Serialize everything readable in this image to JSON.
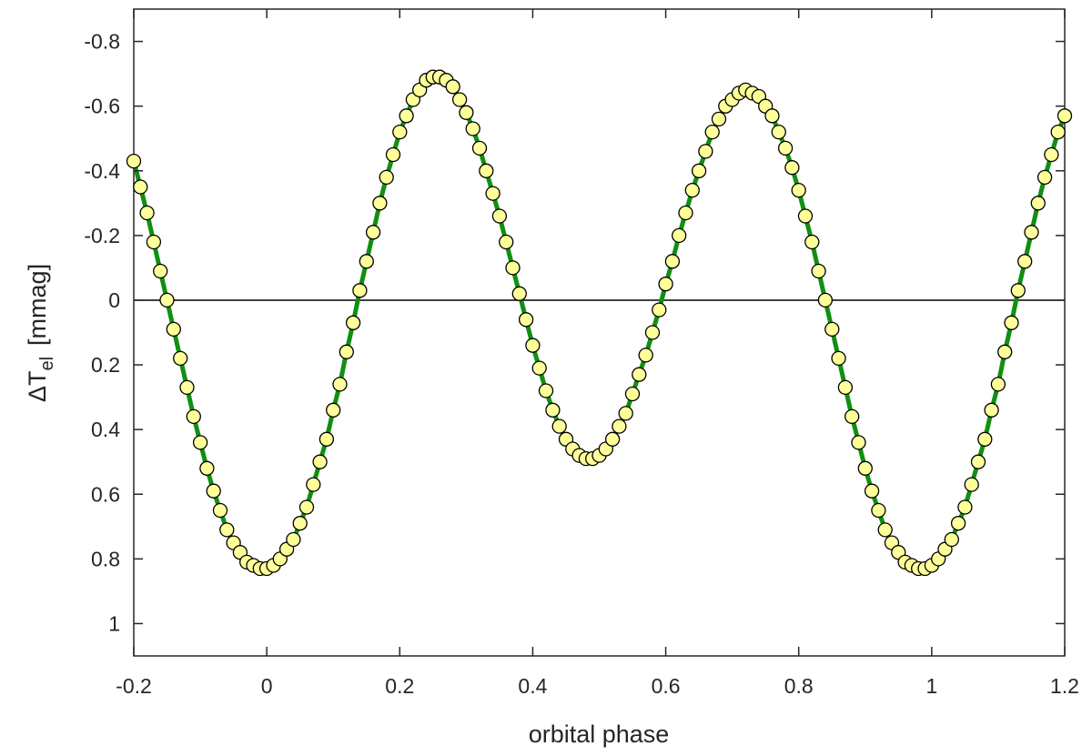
{
  "chart_data": {
    "type": "line",
    "xlabel": "orbital phase",
    "ylabel": {
      "prefix": "ΔT",
      "sub": "el",
      "unit": "[mmag]"
    },
    "xlim": [
      -0.2,
      1.2
    ],
    "ylim": [
      1.1,
      -0.9
    ],
    "y_reversed": true,
    "xticks": [
      {
        "v": -0.2,
        "label": "-0.2"
      },
      {
        "v": 0,
        "label": "0"
      },
      {
        "v": 0.2,
        "label": "0.2"
      },
      {
        "v": 0.4,
        "label": "0.4"
      },
      {
        "v": 0.6,
        "label": "0.6"
      },
      {
        "v": 0.8,
        "label": "0.8"
      },
      {
        "v": 1,
        "label": "1"
      },
      {
        "v": 1.2,
        "label": "1.2"
      }
    ],
    "yticks": [
      {
        "v": -0.8,
        "label": "-0.8"
      },
      {
        "v": -0.6,
        "label": "-0.6"
      },
      {
        "v": -0.4,
        "label": "-0.4"
      },
      {
        "v": -0.2,
        "label": "-0.2"
      },
      {
        "v": 0,
        "label": "0"
      },
      {
        "v": 0.2,
        "label": "0.2"
      },
      {
        "v": 0.4,
        "label": "0.4"
      },
      {
        "v": 0.6,
        "label": "0.6"
      },
      {
        "v": 0.8,
        "label": "0.8"
      },
      {
        "v": 1,
        "label": "1"
      }
    ],
    "grid": false,
    "zero_line": true,
    "series": [
      {
        "kind": "model-curve",
        "color": "#109010",
        "x": [
          -0.2,
          -0.19,
          -0.18,
          -0.17,
          -0.16,
          -0.15,
          -0.14,
          -0.13,
          -0.12,
          -0.11,
          -0.1,
          -0.09,
          -0.08,
          -0.07,
          -0.06,
          -0.05,
          -0.04,
          -0.03,
          -0.02,
          -0.01,
          0,
          0.01,
          0.02,
          0.03,
          0.04,
          0.05,
          0.06,
          0.07,
          0.08,
          0.09,
          0.1,
          0.11,
          0.12,
          0.13,
          0.14,
          0.15,
          0.16,
          0.17,
          0.18,
          0.19,
          0.2,
          0.21,
          0.22,
          0.23,
          0.24,
          0.25,
          0.26,
          0.27,
          0.28,
          0.29,
          0.3,
          0.31,
          0.32,
          0.33,
          0.34,
          0.35,
          0.36,
          0.37,
          0.38,
          0.39,
          0.4,
          0.41,
          0.42,
          0.43,
          0.44,
          0.45,
          0.46,
          0.47,
          0.48,
          0.49,
          0.5,
          0.51,
          0.52,
          0.53,
          0.54,
          0.55,
          0.56,
          0.57,
          0.58,
          0.59,
          0.6,
          0.61,
          0.62,
          0.63,
          0.64,
          0.65,
          0.66,
          0.67,
          0.68,
          0.69,
          0.7,
          0.71,
          0.72,
          0.73,
          0.74,
          0.75,
          0.76,
          0.77,
          0.78,
          0.79,
          0.8,
          0.81,
          0.82,
          0.83,
          0.84,
          0.85,
          0.86,
          0.87,
          0.88,
          0.89,
          0.9,
          0.91,
          0.92,
          0.93,
          0.94,
          0.95,
          0.96,
          0.97,
          0.98,
          0.99,
          1,
          1.01,
          1.02,
          1.03,
          1.04,
          1.05,
          1.06,
          1.07,
          1.08,
          1.09,
          1.1,
          1.11,
          1.12,
          1.13,
          1.14,
          1.15,
          1.16,
          1.17,
          1.18,
          1.19,
          1.2
        ],
        "y": [
          -0.43,
          -0.35,
          -0.27,
          -0.18,
          -0.09,
          0.0,
          0.09,
          0.18,
          0.27,
          0.36,
          0.44,
          0.52,
          0.59,
          0.65,
          0.71,
          0.75,
          0.78,
          0.81,
          0.82,
          0.83,
          0.83,
          0.82,
          0.8,
          0.77,
          0.74,
          0.69,
          0.64,
          0.57,
          0.5,
          0.43,
          0.34,
          0.26,
          0.16,
          0.07,
          -0.03,
          -0.12,
          -0.21,
          -0.3,
          -0.38,
          -0.45,
          -0.52,
          -0.57,
          -0.62,
          -0.65,
          -0.68,
          -0.69,
          -0.69,
          -0.68,
          -0.66,
          -0.62,
          -0.58,
          -0.53,
          -0.47,
          -0.4,
          -0.33,
          -0.26,
          -0.18,
          -0.1,
          -0.02,
          0.06,
          0.14,
          0.21,
          0.28,
          0.34,
          0.39,
          0.43,
          0.46,
          0.48,
          0.49,
          0.49,
          0.48,
          0.46,
          0.43,
          0.39,
          0.35,
          0.29,
          0.23,
          0.17,
          0.1,
          0.03,
          -0.05,
          -0.12,
          -0.2,
          -0.27,
          -0.34,
          -0.4,
          -0.46,
          -0.52,
          -0.56,
          -0.6,
          -0.62,
          -0.64,
          -0.65,
          -0.64,
          -0.63,
          -0.6,
          -0.57,
          -0.52,
          -0.47,
          -0.41,
          -0.34,
          -0.26,
          -0.18,
          -0.09,
          0.0,
          0.09,
          0.18,
          0.27,
          0.36,
          0.44,
          0.52,
          0.59,
          0.65,
          0.71,
          0.75,
          0.78,
          0.81,
          0.82,
          0.83,
          0.83,
          0.82,
          0.8,
          0.77,
          0.74,
          0.69,
          0.64,
          0.57,
          0.5,
          0.43,
          0.34,
          0.26,
          0.16,
          0.07,
          -0.03,
          -0.12,
          -0.21,
          -0.3,
          -0.38,
          -0.45,
          -0.52,
          -0.57
        ]
      },
      {
        "kind": "data-points",
        "fill": "#ffff99",
        "stroke": "#000000",
        "x": [
          -0.2,
          -0.19,
          -0.18,
          -0.17,
          -0.16,
          -0.15,
          -0.14,
          -0.13,
          -0.12,
          -0.11,
          -0.1,
          -0.09,
          -0.08,
          -0.07,
          -0.06,
          -0.05,
          -0.04,
          -0.03,
          -0.02,
          -0.01,
          0,
          0.01,
          0.02,
          0.03,
          0.04,
          0.05,
          0.06,
          0.07,
          0.08,
          0.09,
          0.1,
          0.11,
          0.12,
          0.13,
          0.14,
          0.15,
          0.16,
          0.17,
          0.18,
          0.19,
          0.2,
          0.21,
          0.22,
          0.23,
          0.24,
          0.25,
          0.26,
          0.27,
          0.28,
          0.29,
          0.3,
          0.31,
          0.32,
          0.33,
          0.34,
          0.35,
          0.36,
          0.37,
          0.38,
          0.39,
          0.4,
          0.41,
          0.42,
          0.43,
          0.44,
          0.45,
          0.46,
          0.47,
          0.48,
          0.49,
          0.5,
          0.51,
          0.52,
          0.53,
          0.54,
          0.55,
          0.56,
          0.57,
          0.58,
          0.59,
          0.6,
          0.61,
          0.62,
          0.63,
          0.64,
          0.65,
          0.66,
          0.67,
          0.68,
          0.69,
          0.7,
          0.71,
          0.72,
          0.73,
          0.74,
          0.75,
          0.76,
          0.77,
          0.78,
          0.79,
          0.8,
          0.81,
          0.82,
          0.83,
          0.84,
          0.85,
          0.86,
          0.87,
          0.88,
          0.89,
          0.9,
          0.91,
          0.92,
          0.93,
          0.94,
          0.95,
          0.96,
          0.97,
          0.98,
          0.99,
          1,
          1.01,
          1.02,
          1.03,
          1.04,
          1.05,
          1.06,
          1.07,
          1.08,
          1.09,
          1.1,
          1.11,
          1.12,
          1.13,
          1.14,
          1.15,
          1.16,
          1.17,
          1.18,
          1.19,
          1.2
        ],
        "y": [
          -0.43,
          -0.35,
          -0.27,
          -0.18,
          -0.09,
          0.0,
          0.09,
          0.18,
          0.27,
          0.36,
          0.44,
          0.52,
          0.59,
          0.65,
          0.71,
          0.75,
          0.78,
          0.81,
          0.82,
          0.83,
          0.83,
          0.82,
          0.8,
          0.77,
          0.74,
          0.69,
          0.64,
          0.57,
          0.5,
          0.43,
          0.34,
          0.26,
          0.16,
          0.07,
          -0.03,
          -0.12,
          -0.21,
          -0.3,
          -0.38,
          -0.45,
          -0.52,
          -0.57,
          -0.62,
          -0.65,
          -0.68,
          -0.69,
          -0.69,
          -0.68,
          -0.66,
          -0.62,
          -0.58,
          -0.53,
          -0.47,
          -0.4,
          -0.33,
          -0.26,
          -0.18,
          -0.1,
          -0.02,
          0.06,
          0.14,
          0.21,
          0.28,
          0.34,
          0.39,
          0.43,
          0.46,
          0.48,
          0.49,
          0.49,
          0.48,
          0.46,
          0.43,
          0.39,
          0.35,
          0.29,
          0.23,
          0.17,
          0.1,
          0.03,
          -0.05,
          -0.12,
          -0.2,
          -0.27,
          -0.34,
          -0.4,
          -0.46,
          -0.52,
          -0.56,
          -0.6,
          -0.62,
          -0.64,
          -0.65,
          -0.64,
          -0.63,
          -0.6,
          -0.57,
          -0.52,
          -0.47,
          -0.41,
          -0.34,
          -0.26,
          -0.18,
          -0.09,
          0.0,
          0.09,
          0.18,
          0.27,
          0.36,
          0.44,
          0.52,
          0.59,
          0.65,
          0.71,
          0.75,
          0.78,
          0.81,
          0.82,
          0.83,
          0.83,
          0.82,
          0.8,
          0.77,
          0.74,
          0.69,
          0.64,
          0.57,
          0.5,
          0.43,
          0.34,
          0.26,
          0.16,
          0.07,
          -0.03,
          -0.12,
          -0.21,
          -0.3,
          -0.38,
          -0.45,
          -0.52,
          -0.57
        ]
      }
    ]
  }
}
